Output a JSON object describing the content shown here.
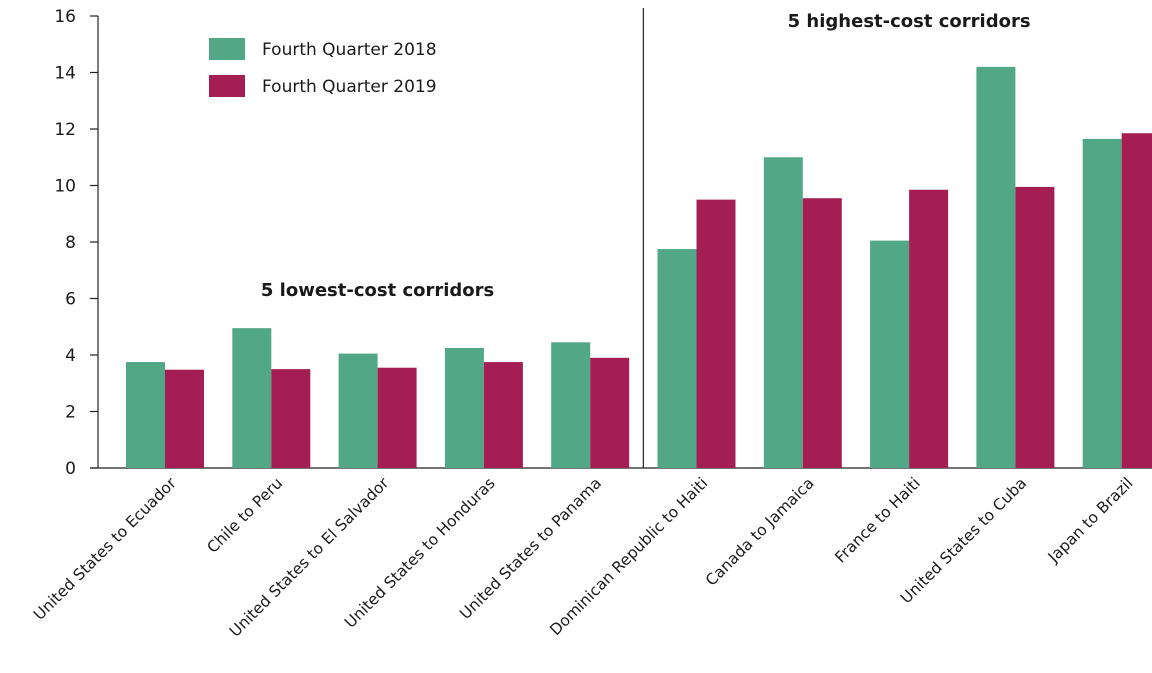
{
  "chart_data": {
    "type": "bar",
    "categories": [
      "United States to Ecuador",
      "Chile to Peru",
      "United States to El Salvador",
      "United States to Honduras",
      "United States to Panama",
      "Dominican Republic to Haiti",
      "Canada to Jamaica",
      "France to Haiti",
      "United States to Cuba",
      "Japan to Brazil"
    ],
    "series": [
      {
        "name": "Fourth Quarter 2018",
        "color": "#52a886",
        "values": [
          3.75,
          4.95,
          4.05,
          4.25,
          4.45,
          7.75,
          11.0,
          8.05,
          14.2,
          11.65
        ]
      },
      {
        "name": "Fourth Quarter 2019",
        "color": "#a41e54",
        "values": [
          3.48,
          3.5,
          3.55,
          3.75,
          3.9,
          9.5,
          9.55,
          9.85,
          9.95,
          11.85
        ]
      }
    ],
    "yticks": [
      0,
      2,
      4,
      6,
      8,
      10,
      12,
      14,
      16
    ],
    "ylim": [
      0,
      16
    ],
    "group_labels": [
      "5 lowest-cost corridors",
      "5 highest-cost corridors"
    ],
    "legend_position": "top-left",
    "grid": false
  }
}
